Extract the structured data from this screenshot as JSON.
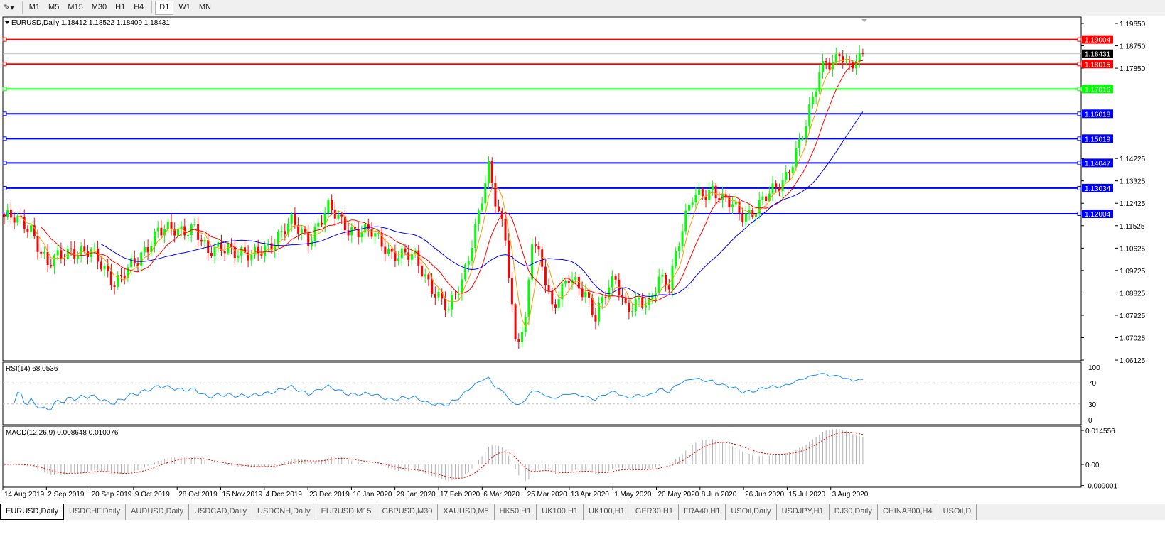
{
  "toolbar": {
    "timeframes": [
      {
        "label": "M1"
      },
      {
        "label": "M5"
      },
      {
        "label": "M15"
      },
      {
        "label": "M30"
      },
      {
        "label": "H1"
      },
      {
        "label": "H4"
      },
      {
        "label": "D1",
        "active": true
      },
      {
        "label": "W1"
      },
      {
        "label": "MN"
      }
    ]
  },
  "main": {
    "header": "EURUSD,Daily  1.18412 1.18522 1.18409 1.18431",
    "symbol": "EURUSD",
    "timeframe": "Daily",
    "ohlc": {
      "open": "1.18412",
      "high": "1.18522",
      "low": "1.18409",
      "close": "1.18431"
    },
    "current_price": "1.18431",
    "price_ticks": [
      "1.19650",
      "1.18750",
      "1.17850",
      "1.14225",
      "1.13325",
      "1.12425",
      "1.11525",
      "1.10625",
      "1.09725",
      "1.08825",
      "1.07925",
      "1.07025",
      "1.06125"
    ],
    "levels": [
      {
        "value": "1.19004",
        "color": "#ff0000"
      },
      {
        "value": "1.18015",
        "color": "#ff0000"
      },
      {
        "value": "1.17016",
        "color": "#00ff00"
      },
      {
        "value": "1.16018",
        "color": "#0000ff"
      },
      {
        "value": "1.15019",
        "color": "#0000ff"
      },
      {
        "value": "1.14047",
        "color": "#0000ff"
      },
      {
        "value": "1.13034",
        "color": "#0000ff"
      },
      {
        "value": "1.12004",
        "color": "#0000ff"
      }
    ],
    "close_path": [
      [
        0,
        1.1189
      ],
      [
        8,
        1.1146
      ],
      [
        13,
        1.0989
      ],
      [
        20,
        1.1061
      ],
      [
        26,
        1.1038
      ],
      [
        33,
        1.0932
      ],
      [
        40,
        1.1004
      ],
      [
        46,
        1.1146
      ],
      [
        52,
        1.1118
      ],
      [
        57,
        1.116
      ],
      [
        61,
        1.1032
      ],
      [
        67,
        1.1075
      ],
      [
        74,
        1.1018
      ],
      [
        80,
        1.1089
      ],
      [
        86,
        1.116
      ],
      [
        91,
        1.1103
      ],
      [
        97,
        1.1217
      ],
      [
        103,
        1.1146
      ],
      [
        110,
        1.1118
      ],
      [
        116,
        1.1046
      ],
      [
        123,
        1.1018
      ],
      [
        129,
        1.0889
      ],
      [
        133,
        1.0804
      ],
      [
        137,
        1.0932
      ],
      [
        142,
        1.1203
      ],
      [
        145,
        1.1374
      ],
      [
        147,
        1.1246
      ],
      [
        150,
        1.1118
      ],
      [
        153,
        1.069
      ],
      [
        156,
        1.0747
      ],
      [
        158,
        1.1089
      ],
      [
        161,
        1.1004
      ],
      [
        164,
        1.0832
      ],
      [
        167,
        1.0889
      ],
      [
        169,
        1.0932
      ],
      [
        174,
        1.0889
      ],
      [
        177,
        1.079
      ],
      [
        180,
        1.0875
      ],
      [
        183,
        1.0932
      ],
      [
        186,
        1.0832
      ],
      [
        190,
        1.0847
      ],
      [
        193,
        1.0818
      ],
      [
        196,
        1.0946
      ],
      [
        199,
        1.0932
      ],
      [
        202,
        1.1089
      ],
      [
        206,
        1.126
      ],
      [
        209,
        1.1289
      ],
      [
        212,
        1.1303
      ],
      [
        215,
        1.1246
      ],
      [
        218,
        1.1232
      ],
      [
        221,
        1.1203
      ],
      [
        225,
        1.1217
      ],
      [
        228,
        1.126
      ],
      [
        231,
        1.1303
      ],
      [
        234,
        1.136
      ],
      [
        237,
        1.1446
      ],
      [
        240,
        1.1546
      ],
      [
        242,
        1.166
      ],
      [
        244,
        1.1774
      ],
      [
        246,
        1.1831
      ],
      [
        248,
        1.1802
      ],
      [
        250,
        1.1845
      ],
      [
        252,
        1.1774
      ],
      [
        254,
        1.1802
      ],
      [
        257,
        1.1843
      ]
    ]
  },
  "rsi": {
    "label": "RSI(14) 68.0536",
    "ticks": [
      "100",
      "70",
      "30",
      "0"
    ]
  },
  "macd": {
    "label": "MACD(12,26,9) 0.008648 0.010076",
    "ticks": [
      "0.014556",
      "0.00",
      "-0.009001"
    ]
  },
  "dates": [
    "14 Aug 2019",
    "2 Sep 2019",
    "20 Sep 2019",
    "9 Oct 2019",
    "28 Oct 2019",
    "15 Nov 2019",
    "4 Dec 2019",
    "23 Dec 2019",
    "10 Jan 2020",
    "29 Jan 2020",
    "17 Feb 2020",
    "6 Mar 2020",
    "25 Mar 2020",
    "13 Apr 2020",
    "1 May 2020",
    "20 May 2020",
    "8 Jun 2020",
    "26 Jun 2020",
    "15 Jul 2020",
    "3 Aug 2020"
  ],
  "colors": {
    "bull": "#00ff00",
    "bear": "#ff0000",
    "ma_fast": "#ff9900",
    "ma_mid": "#ff0000",
    "ma_slow": "#0000ff",
    "rsi": "#1e90ff",
    "macd_hist": "#b0b0b0",
    "macd_signal": "#ff0000"
  },
  "tabs": [
    {
      "label": "EURUSD,Daily",
      "active": true
    },
    {
      "label": "USDCHF,Daily"
    },
    {
      "label": "AUDUSD,Daily"
    },
    {
      "label": "USDCAD,Daily"
    },
    {
      "label": "USDCNH,Daily"
    },
    {
      "label": "EURUSD,M15"
    },
    {
      "label": "GBPUSD,M30"
    },
    {
      "label": "XAUUSD,M5"
    },
    {
      "label": "HK50,H1"
    },
    {
      "label": "UK100,H1"
    },
    {
      "label": "UK100,H1"
    },
    {
      "label": "GER30,H1"
    },
    {
      "label": "FRA40,H1"
    },
    {
      "label": "USOil,Daily"
    },
    {
      "label": "USDJPY,H1"
    },
    {
      "label": "DJ30,Daily"
    },
    {
      "label": "CHINA300,H4"
    },
    {
      "label": "USOil,D"
    }
  ]
}
